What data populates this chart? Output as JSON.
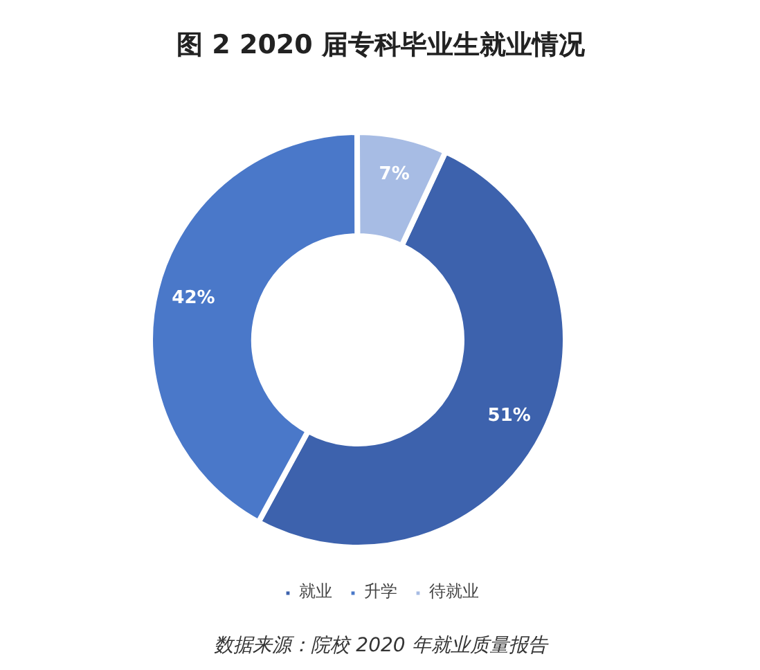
{
  "chart_data": {
    "type": "donut",
    "title": "图 2 2020 届专科毕业生就业情况",
    "categories": [
      "就业",
      "升学",
      "待就业"
    ],
    "values": [
      51,
      42,
      7
    ],
    "colors": [
      "#3d62ad",
      "#4a78c9",
      "#a7bce4"
    ],
    "value_labels": [
      "51%",
      "42%",
      "7%"
    ],
    "legend": "bottom",
    "annotations": [
      "数据来源：院校 2020 年就业质量报告"
    ]
  }
}
